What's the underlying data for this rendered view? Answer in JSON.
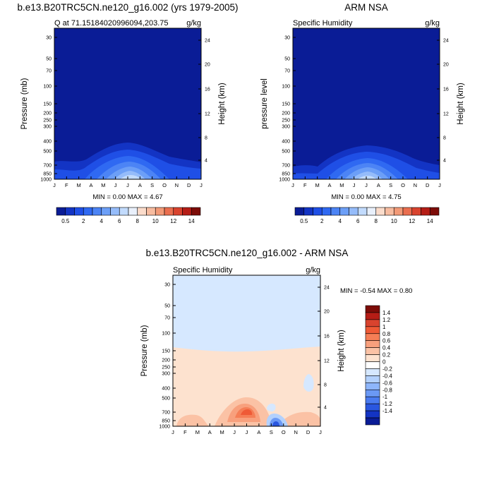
{
  "colors": {
    "dark_blue": "#0a1c96",
    "light_blue": "#d6e8ff",
    "light_peach": "#fde2cf"
  },
  "chart_data": [
    {
      "type": "heatmap",
      "title": "b.e13.B20TRC5CN.ne120_g16.002 (yrs 1979-2005)",
      "subtitle_left": "Q at 71.15184020996094,203.75",
      "subtitle_right": "g/kg",
      "xlabel": "",
      "ylabel": "Pressure (mb)",
      "ylabel_right": "Height (km)",
      "x": [
        "J",
        "F",
        "M",
        "A",
        "M",
        "J",
        "J",
        "A",
        "S",
        "O",
        "N",
        "D",
        "J"
      ],
      "y_ticks": [
        "30",
        "50",
        "70",
        "100",
        "150",
        "200",
        "250",
        "300",
        "400",
        "500",
        "700",
        "850",
        "1000"
      ],
      "y_right_ticks": [
        "24",
        "20",
        "16",
        "12",
        "8",
        "4"
      ],
      "minmax": "MIN =   0.00 MAX =   4.67",
      "colorbar": {
        "orientation": "horizontal",
        "colors": [
          "#0a1c96",
          "#1334c4",
          "#1f4fe6",
          "#2f69f2",
          "#4c84f5",
          "#6c9ff7",
          "#95bcfa",
          "#c2dbfd",
          "#e9f0fb",
          "#fbdccb",
          "#f7bca0",
          "#f29a77",
          "#ea6e4f",
          "#d9432e",
          "#b51d16",
          "#7d0c08"
        ],
        "labels": [
          "0.5",
          "2",
          "4",
          "6",
          "8",
          "10",
          "12",
          "14"
        ]
      }
    },
    {
      "type": "heatmap",
      "title": "ARM NSA",
      "subtitle_left": "Specific Humidity",
      "subtitle_right": "g/kg",
      "xlabel": "",
      "ylabel": "pressure level",
      "ylabel_right": "Height (km)",
      "x": [
        "J",
        "F",
        "M",
        "A",
        "M",
        "J",
        "J",
        "A",
        "S",
        "O",
        "N",
        "D",
        "J"
      ],
      "y_ticks": [
        "30",
        "50",
        "70",
        "100",
        "150",
        "200",
        "250",
        "300",
        "400",
        "500",
        "700",
        "850",
        "1000"
      ],
      "y_right_ticks": [
        "24",
        "20",
        "16",
        "12",
        "8",
        "4"
      ],
      "minmax": "MIN =   0.00 MAX =   4.75",
      "colorbar": {
        "orientation": "horizontal",
        "colors": [
          "#0a1c96",
          "#1334c4",
          "#1f4fe6",
          "#2f69f2",
          "#4c84f5",
          "#6c9ff7",
          "#95bcfa",
          "#c2dbfd",
          "#e9f0fb",
          "#fbdccb",
          "#f7bca0",
          "#f29a77",
          "#ea6e4f",
          "#d9432e",
          "#b51d16",
          "#7d0c08"
        ],
        "labels": [
          "0.5",
          "2",
          "4",
          "6",
          "8",
          "10",
          "12",
          "14"
        ]
      }
    },
    {
      "type": "heatmap",
      "title": "b.e13.B20TRC5CN.ne120_g16.002 - ARM NSA",
      "subtitle_left": "Specific Humidity",
      "subtitle_right": "g/kg",
      "xlabel": "",
      "ylabel": "Pressure (mb)",
      "ylabel_right": "Height (km)",
      "x": [
        "J",
        "F",
        "M",
        "A",
        "M",
        "J",
        "J",
        "A",
        "S",
        "O",
        "N",
        "D",
        "J"
      ],
      "y_ticks": [
        "30",
        "50",
        "70",
        "100",
        "150",
        "200",
        "250",
        "300",
        "400",
        "500",
        "700",
        "850",
        "1000"
      ],
      "y_right_ticks": [
        "24",
        "20",
        "16",
        "12",
        "8",
        "4"
      ],
      "minmax": "MIN =  -0.54 MAX =   0.80",
      "colorbar": {
        "orientation": "vertical",
        "colors": [
          "#7d0c08",
          "#b51d16",
          "#d9432e",
          "#ef5a36",
          "#f57e56",
          "#f8a07d",
          "#fbc2a5",
          "#fde2cf",
          "#ffffff",
          "#d6e8ff",
          "#b3d1fd",
          "#8eb6fb",
          "#6b99f5",
          "#4a7bf0",
          "#2a57e0",
          "#1334c4",
          "#0a1c96"
        ],
        "labels": [
          "1.4",
          "1.2",
          "1",
          "0.8",
          "0.6",
          "0.4",
          "0.2",
          "0",
          "-0.2",
          "-0.4",
          "-0.6",
          "-0.8",
          "-1",
          "-1.2",
          "-1.4"
        ]
      }
    }
  ]
}
